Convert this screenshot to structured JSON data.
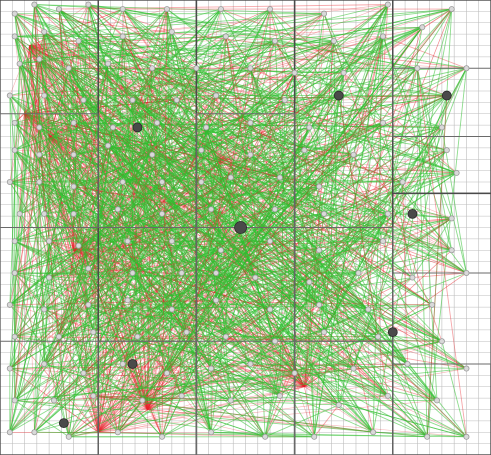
{
  "diagram": {
    "type": "graph-over-quadtree-grid",
    "grid": {
      "fine_cells_per_side": 40,
      "partition_cells": [
        [
          0,
          0,
          8,
          40
        ],
        [
          8,
          0,
          16,
          40
        ],
        [
          16,
          0,
          24,
          40
        ],
        [
          24,
          0,
          32,
          40
        ],
        [
          32,
          0,
          40,
          17
        ],
        [
          32,
          17,
          40,
          40
        ]
      ]
    },
    "edge_colors": {
      "short": "#2fbf2f",
      "long": "#e8232a"
    },
    "node_color": "#9a9a9a",
    "hub_color": "#4a4a4a",
    "nodes": [
      [
        0.03,
        0.03
      ],
      [
        0.07,
        0.01
      ],
      [
        0.12,
        0.02
      ],
      [
        0.18,
        0.01
      ],
      [
        0.25,
        0.02
      ],
      [
        0.34,
        0.02
      ],
      [
        0.45,
        0.02
      ],
      [
        0.55,
        0.02
      ],
      [
        0.66,
        0.03
      ],
      [
        0.79,
        0.01
      ],
      [
        0.92,
        0.02
      ],
      [
        0.03,
        0.08
      ],
      [
        0.09,
        0.07
      ],
      [
        0.16,
        0.09
      ],
      [
        0.25,
        0.08
      ],
      [
        0.35,
        0.07
      ],
      [
        0.46,
        0.08
      ],
      [
        0.56,
        0.09
      ],
      [
        0.68,
        0.09
      ],
      [
        0.78,
        0.08
      ],
      [
        0.86,
        0.06
      ],
      [
        0.04,
        0.14
      ],
      [
        0.08,
        0.13
      ],
      [
        0.14,
        0.15
      ],
      [
        0.22,
        0.14
      ],
      [
        0.31,
        0.15
      ],
      [
        0.4,
        0.15
      ],
      [
        0.51,
        0.15
      ],
      [
        0.6,
        0.16
      ],
      [
        0.7,
        0.16
      ],
      [
        0.85,
        0.15
      ],
      [
        0.95,
        0.15
      ],
      [
        0.02,
        0.21
      ],
      [
        0.09,
        0.21
      ],
      [
        0.17,
        0.22
      ],
      [
        0.27,
        0.22
      ],
      [
        0.36,
        0.22
      ],
      [
        0.44,
        0.21
      ],
      [
        0.58,
        0.22
      ],
      [
        0.69,
        0.21
      ],
      [
        0.91,
        0.21
      ],
      [
        0.03,
        0.27
      ],
      [
        0.08,
        0.28
      ],
      [
        0.15,
        0.27
      ],
      [
        0.23,
        0.28
      ],
      [
        0.32,
        0.27
      ],
      [
        0.42,
        0.28
      ],
      [
        0.51,
        0.27
      ],
      [
        0.63,
        0.28
      ],
      [
        0.78,
        0.27
      ],
      [
        0.9,
        0.28
      ],
      [
        0.03,
        0.33
      ],
      [
        0.08,
        0.34
      ],
      [
        0.15,
        0.34
      ],
      [
        0.22,
        0.32
      ],
      [
        0.31,
        0.34
      ],
      [
        0.41,
        0.33
      ],
      [
        0.51,
        0.34
      ],
      [
        0.62,
        0.33
      ],
      [
        0.72,
        0.34
      ],
      [
        0.91,
        0.33
      ],
      [
        0.02,
        0.4
      ],
      [
        0.08,
        0.4
      ],
      [
        0.15,
        0.41
      ],
      [
        0.25,
        0.4
      ],
      [
        0.33,
        0.4
      ],
      [
        0.41,
        0.4
      ],
      [
        0.47,
        0.39
      ],
      [
        0.57,
        0.39
      ],
      [
        0.65,
        0.41
      ],
      [
        0.82,
        0.4
      ],
      [
        0.93,
        0.38
      ],
      [
        0.04,
        0.47
      ],
      [
        0.09,
        0.47
      ],
      [
        0.15,
        0.47
      ],
      [
        0.24,
        0.46
      ],
      [
        0.33,
        0.47
      ],
      [
        0.43,
        0.46
      ],
      [
        0.56,
        0.46
      ],
      [
        0.66,
        0.47
      ],
      [
        0.79,
        0.47
      ],
      [
        0.92,
        0.48
      ],
      [
        0.03,
        0.53
      ],
      [
        0.1,
        0.53
      ],
      [
        0.16,
        0.54
      ],
      [
        0.26,
        0.53
      ],
      [
        0.35,
        0.53
      ],
      [
        0.45,
        0.55
      ],
      [
        0.55,
        0.53
      ],
      [
        0.65,
        0.55
      ],
      [
        0.78,
        0.53
      ],
      [
        0.92,
        0.55
      ],
      [
        0.03,
        0.6
      ],
      [
        0.1,
        0.61
      ],
      [
        0.18,
        0.59
      ],
      [
        0.27,
        0.6
      ],
      [
        0.37,
        0.6
      ],
      [
        0.44,
        0.6
      ],
      [
        0.52,
        0.61
      ],
      [
        0.63,
        0.62
      ],
      [
        0.73,
        0.6
      ],
      [
        0.84,
        0.61
      ],
      [
        0.95,
        0.6
      ],
      [
        0.02,
        0.67
      ],
      [
        0.09,
        0.68
      ],
      [
        0.18,
        0.67
      ],
      [
        0.26,
        0.66
      ],
      [
        0.35,
        0.68
      ],
      [
        0.44,
        0.66
      ],
      [
        0.55,
        0.68
      ],
      [
        0.65,
        0.67
      ],
      [
        0.75,
        0.68
      ],
      [
        0.88,
        0.67
      ],
      [
        0.03,
        0.74
      ],
      [
        0.12,
        0.74
      ],
      [
        0.19,
        0.73
      ],
      [
        0.28,
        0.74
      ],
      [
        0.38,
        0.73
      ],
      [
        0.46,
        0.74
      ],
      [
        0.56,
        0.75
      ],
      [
        0.66,
        0.73
      ],
      [
        0.77,
        0.74
      ],
      [
        0.9,
        0.75
      ],
      [
        0.02,
        0.81
      ],
      [
        0.09,
        0.8
      ],
      [
        0.17,
        0.82
      ],
      [
        0.25,
        0.8
      ],
      [
        0.34,
        0.82
      ],
      [
        0.43,
        0.81
      ],
      [
        0.51,
        0.8
      ],
      [
        0.6,
        0.82
      ],
      [
        0.72,
        0.81
      ],
      [
        0.83,
        0.8
      ],
      [
        0.95,
        0.81
      ],
      [
        0.03,
        0.88
      ],
      [
        0.11,
        0.88
      ],
      [
        0.19,
        0.87
      ],
      [
        0.29,
        0.88
      ],
      [
        0.37,
        0.87
      ],
      [
        0.47,
        0.88
      ],
      [
        0.57,
        0.87
      ],
      [
        0.69,
        0.89
      ],
      [
        0.79,
        0.87
      ],
      [
        0.89,
        0.88
      ],
      [
        0.02,
        0.95
      ],
      [
        0.07,
        0.95
      ],
      [
        0.14,
        0.96
      ],
      [
        0.24,
        0.95
      ],
      [
        0.33,
        0.96
      ],
      [
        0.43,
        0.95
      ],
      [
        0.54,
        0.96
      ],
      [
        0.64,
        0.96
      ],
      [
        0.76,
        0.95
      ],
      [
        0.87,
        0.96
      ],
      [
        0.95,
        0.96
      ]
    ],
    "hubs": [
      [
        0.49,
        0.5
      ],
      [
        0.27,
        0.8
      ],
      [
        0.69,
        0.21
      ],
      [
        0.91,
        0.21
      ],
      [
        0.28,
        0.28
      ],
      [
        0.8,
        0.73
      ],
      [
        0.13,
        0.93
      ],
      [
        0.84,
        0.47
      ]
    ]
  }
}
